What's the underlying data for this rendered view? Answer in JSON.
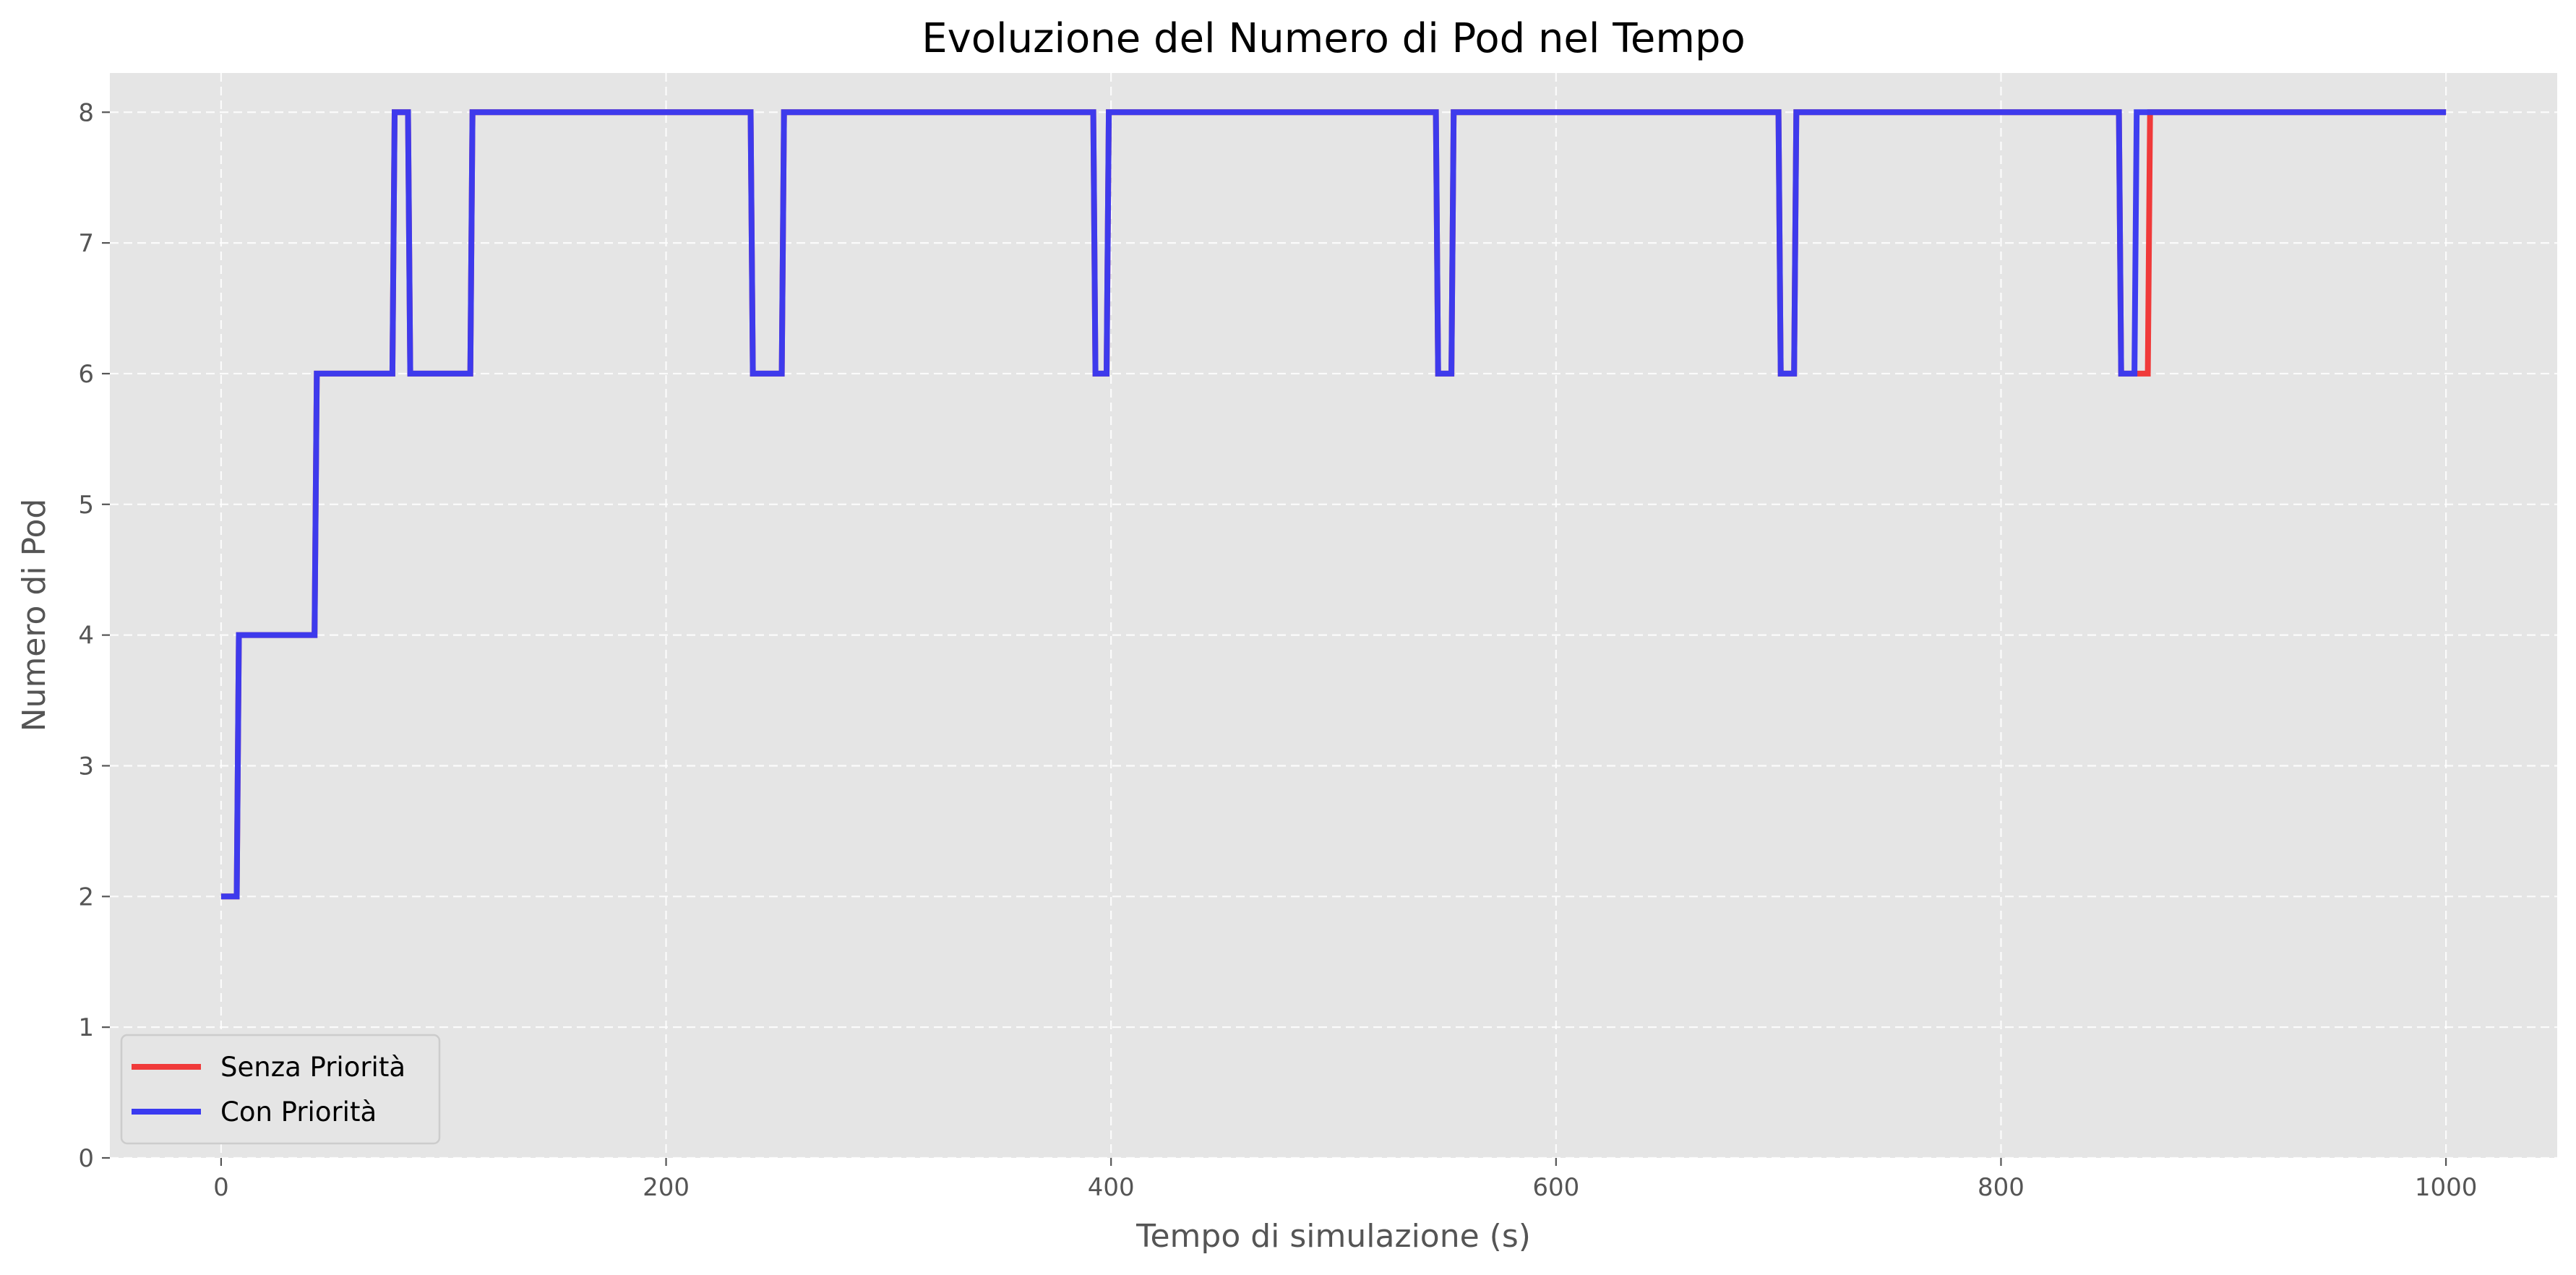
{
  "chart_data": {
    "type": "line",
    "title": "Evoluzione del Numero di Pod nel Tempo",
    "xlabel": "Tempo di simulazione (s)",
    "ylabel": "Numero di Pod",
    "xlim": [
      -50,
      1050
    ],
    "ylim": [
      0,
      8.3
    ],
    "xticks": [
      0,
      200,
      400,
      600,
      800,
      1000
    ],
    "yticks": [
      0,
      1,
      2,
      3,
      4,
      5,
      6,
      7,
      8
    ],
    "grid": true,
    "legend_position": "lower-left",
    "background": "#e5e5e5",
    "series": [
      {
        "name": "Senza Priorità",
        "color": "#f03a3a",
        "x": [
          0,
          7,
          8,
          42,
          43,
          77,
          78,
          84,
          85,
          112,
          113,
          238,
          239,
          252,
          253,
          392,
          393,
          398,
          399,
          546,
          547,
          553,
          554,
          700,
          701,
          707,
          708,
          853,
          854,
          866,
          867,
          1000
        ],
        "y": [
          2,
          2,
          4,
          4,
          6,
          6,
          8,
          8,
          6,
          6,
          8,
          8,
          6,
          6,
          8,
          8,
          6,
          6,
          8,
          8,
          6,
          6,
          8,
          8,
          6,
          6,
          8,
          8,
          6,
          6,
          8,
          8
        ]
      },
      {
        "name": "Con Priorità",
        "color": "#3a3af0",
        "x": [
          0,
          7,
          8,
          42,
          43,
          77,
          78,
          84,
          85,
          112,
          113,
          238,
          239,
          252,
          253,
          392,
          393,
          398,
          399,
          546,
          547,
          553,
          554,
          700,
          701,
          707,
          708,
          853,
          854,
          860,
          861,
          1000
        ],
        "y": [
          2,
          2,
          4,
          4,
          6,
          6,
          8,
          8,
          6,
          6,
          8,
          8,
          6,
          6,
          8,
          8,
          6,
          6,
          8,
          8,
          6,
          6,
          8,
          8,
          6,
          6,
          8,
          8,
          6,
          6,
          8,
          8
        ]
      }
    ]
  }
}
